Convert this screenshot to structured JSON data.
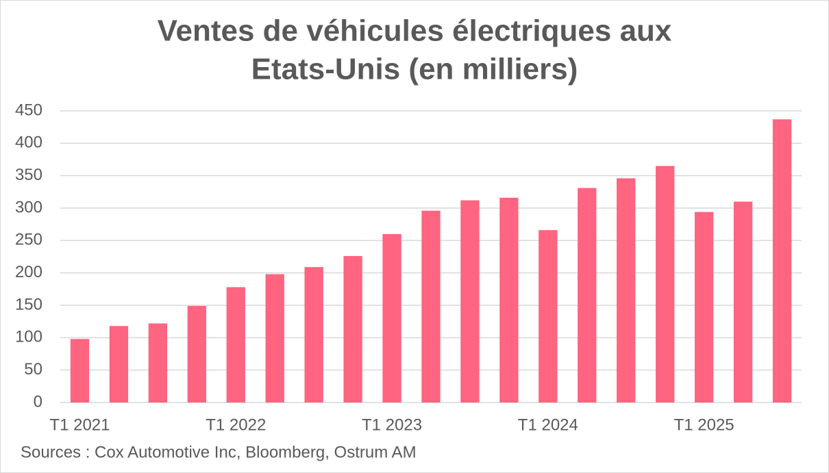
{
  "chart_data": {
    "type": "bar",
    "title": [
      "Ventes de véhicules électriques aux",
      "Etats-Unis (en milliers)"
    ],
    "categories": [
      "T1 2021",
      null,
      null,
      null,
      "T1 2022",
      null,
      null,
      null,
      "T1 2023",
      null,
      null,
      null,
      "T1 2024",
      null,
      null,
      null,
      "T1 2025",
      null,
      null
    ],
    "values": [
      98,
      118,
      122,
      149,
      178,
      198,
      209,
      226,
      260,
      296,
      312,
      316,
      266,
      331,
      346,
      365,
      294,
      310,
      437
    ],
    "color": "#ff6480",
    "ylim": [
      0,
      450
    ],
    "yticks": [
      0,
      50,
      100,
      150,
      200,
      250,
      300,
      350,
      400,
      450
    ],
    "grid": true,
    "source": "Sources : Cox Automotive Inc, Bloomberg, Ostrum AM"
  }
}
